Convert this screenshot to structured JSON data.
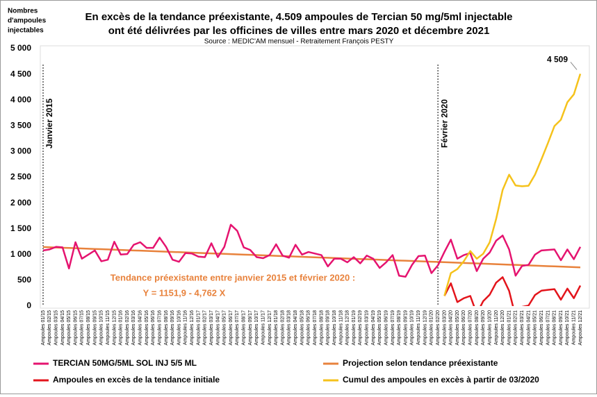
{
  "chart_data": {
    "type": "line",
    "title": "En excès de la tendance préexistante, 4.509 ampoules de Tercian 50 mg/5ml injectable",
    "title_line2": "ont été délivrées par les officines de villes entre mars 2020 et décembre 2021",
    "subtitle": "Source : MEDIC'AM mensuel - Retraitement François PESTY",
    "y_label": [
      "Nombres",
      "d'ampoules",
      "injectables"
    ],
    "markers": [
      "Janvier 2015",
      "Février 2020"
    ],
    "trend_text": [
      "Tendance préexistante entre janvier 2015 et février 2020 :",
      "Y = 1151,9 - 4,762 X"
    ],
    "end_label": "4 509",
    "categories": [
      "Ampoules 01/15",
      "Ampoules 02/15",
      "Ampoules 03/15",
      "Ampoules 04/15",
      "Ampoules 05/15",
      "Ampoules 06/15",
      "Ampoules 07/15",
      "Ampoules 08/15",
      "Ampoules 09/15",
      "Ampoules 10/15",
      "Ampoules 11/15",
      "Ampoules 12/15",
      "Ampoules 01/16",
      "Ampoules 02/16",
      "Ampoules 03/16",
      "Ampoules 04/16",
      "Ampoules 05/16",
      "Ampoules 06/16",
      "Ampoules 07/16",
      "Ampoules 08/16",
      "Ampoules 09/16",
      "Ampoules 10/16",
      "Ampoules 11/16",
      "Ampoules 12/16",
      "Ampoules 01/17",
      "Ampoules 02/17",
      "Ampoules 03/17",
      "Ampoules 04/17",
      "Ampoules 05/17",
      "Ampoules 06/17",
      "Ampoules 07/17",
      "Ampoules 08/17",
      "Ampoules 09/17",
      "Ampoules 10/17",
      "Ampoules 11/17",
      "Ampoules 12/17",
      "Ampoules 01/18",
      "Ampoules 02/18",
      "Ampoules 03/18",
      "Ampoules 04/18",
      "Ampoules 05/18",
      "Ampoules 06/18",
      "Ampoules 07/18",
      "Ampoules 08/18",
      "Ampoules 09/18",
      "Ampoules 10/18",
      "Ampoules 11/18",
      "Ampoules 12/18",
      "Ampoules 01/19",
      "Ampoules 02/19",
      "Ampoules 03/19",
      "Ampoules 04/19",
      "Ampoules 05/19",
      "Ampoules 06/19",
      "Ampoules 07/19",
      "Ampoules 08/19",
      "Ampoules 09/19",
      "Ampoules 10/19",
      "Ampoules 11/19",
      "Ampoules 12/19",
      "Ampoules 01/20",
      "Ampoules 02/20",
      "Ampoules 03/20",
      "Ampoules 04/20",
      "Ampoules 05/20",
      "Ampoules 06/20",
      "Ampoules 07/20",
      "Ampoules 08/20",
      "Ampoules 09/20",
      "Ampoules 10/20",
      "Ampoules 11/20",
      "Ampoules 12/20",
      "Ampoules 01/21",
      "Ampoules 02/21",
      "Ampoules 03/21",
      "Ampoules 04/21",
      "Ampoules 05/21",
      "Ampoules 06/21",
      "Ampoules 07/21",
      "Ampoules 08/21",
      "Ampoules 09/21",
      "Ampoules 10/21",
      "Ampoules 11/21",
      "Ampoules 12/21"
    ],
    "ylim": [
      0,
      5000
    ],
    "yticks": [
      0,
      {
        "value": 500,
        "label": "500"
      },
      {
        "value": 1000,
        "label": "1 000"
      },
      {
        "value": 1500,
        "label": "1 500"
      },
      {
        "value": 2000,
        "label": "2 000"
      },
      {
        "value": 2500,
        "label": "2 500"
      },
      {
        "value": 3000,
        "label": "3 000"
      },
      {
        "value": 3500,
        "label": "3 500"
      },
      {
        "value": 4000,
        "label": "4 000"
      },
      {
        "value": 4500,
        "label": "4 500"
      },
      {
        "value": 5000,
        "label": "5 000"
      }
    ],
    "series": [
      {
        "name": "TERCIAN 50MG/5ML SOL INJ 5/5 ML",
        "color": "#e5136f",
        "values": [
          1080,
          1100,
          1150,
          1140,
          730,
          1240,
          920,
          1000,
          1080,
          870,
          900,
          1250,
          1000,
          1010,
          1190,
          1240,
          1130,
          1130,
          1330,
          1150,
          900,
          860,
          1030,
          1020,
          960,
          950,
          1220,
          950,
          1150,
          1580,
          1460,
          1140,
          1090,
          950,
          930,
          990,
          1200,
          980,
          940,
          1190,
          1000,
          1050,
          1020,
          990,
          770,
          920,
          920,
          850,
          950,
          830,
          980,
          920,
          740,
          850,
          990,
          590,
          570,
          800,
          970,
          980,
          640,
          790,
          1050,
          1290,
          920,
          990,
          1030,
          680,
          920,
          1040,
          1270,
          1370,
          1100,
          590,
          780,
          800,
          1000,
          1080,
          1090,
          1100,
          890,
          1100,
          910,
          1150
        ]
      },
      {
        "name": "Projection selon tendance préexistante",
        "color": "#e8823c",
        "values": [
          1147.1,
          1142.4,
          1137.6,
          1132.9,
          1128.1,
          1123.3,
          1118.6,
          1113.8,
          1109.0,
          1104.3,
          1099.5,
          1094.8,
          1090.0,
          1085.2,
          1080.5,
          1075.7,
          1070.9,
          1066.2,
          1061.4,
          1056.7,
          1051.9,
          1047.1,
          1042.4,
          1037.6,
          1032.9,
          1028.1,
          1023.3,
          1018.6,
          1013.8,
          1009.0,
          1004.3,
          999.5,
          994.8,
          990.0,
          985.2,
          980.5,
          975.7,
          970.9,
          966.2,
          961.4,
          956.7,
          951.9,
          947.1,
          942.4,
          937.6,
          932.9,
          928.1,
          923.3,
          918.6,
          913.8,
          909.0,
          904.3,
          899.5,
          894.8,
          890.0,
          885.2,
          880.5,
          875.7,
          870.9,
          866.2,
          861.4,
          856.7,
          851.9,
          847.1,
          842.4,
          837.6,
          832.8,
          828.1,
          823.3,
          818.5,
          813.8,
          809.0,
          804.2,
          799.5,
          794.7,
          789.9,
          785.2,
          780.4,
          775.6,
          770.9,
          766.1,
          761.3,
          756.6,
          751.8
        ]
      },
      {
        "name": "Ampoules en excès de la tendance initiale",
        "color": "#e3141b",
        "values": [
          null,
          null,
          null,
          null,
          null,
          null,
          null,
          null,
          null,
          null,
          null,
          null,
          null,
          null,
          null,
          null,
          null,
          null,
          null,
          null,
          null,
          null,
          null,
          null,
          null,
          null,
          null,
          null,
          null,
          null,
          null,
          null,
          null,
          null,
          null,
          null,
          null,
          null,
          null,
          null,
          null,
          null,
          null,
          null,
          null,
          null,
          null,
          null,
          null,
          null,
          null,
          null,
          null,
          null,
          null,
          null,
          null,
          null,
          null,
          null,
          null,
          null,
          198.1,
          442.9,
          77.6,
          152.4,
          197.2,
          -148.1,
          96.7,
          221.5,
          456.2,
          561.0,
          295.8,
          -209.5,
          -14.7,
          10.1,
          214.8,
          299.6,
          314.4,
          329.1,
          123.9,
          338.7,
          153.4,
          398.2
        ]
      },
      {
        "name": "Cumul des ampoules en excès à partir de 03/2020",
        "color": "#f5c21b",
        "values": [
          null,
          null,
          null,
          null,
          null,
          null,
          null,
          null,
          null,
          null,
          null,
          null,
          null,
          null,
          null,
          null,
          null,
          null,
          null,
          null,
          null,
          null,
          null,
          null,
          null,
          null,
          null,
          null,
          null,
          null,
          null,
          null,
          null,
          null,
          null,
          null,
          null,
          null,
          null,
          null,
          null,
          null,
          null,
          null,
          null,
          null,
          null,
          null,
          null,
          null,
          null,
          null,
          null,
          null,
          null,
          null,
          null,
          null,
          null,
          null,
          null,
          null,
          198.1,
          641.0,
          718.6,
          871.0,
          1068.2,
          920.1,
          1016.8,
          1238.3,
          1694.5,
          2255.5,
          2551.3,
          2341.8,
          2327.1,
          2337.2,
          2552.0,
          2851.6,
          3166.0,
          3495.1,
          3619.0,
          3957.7,
          4111.1,
          4509.3
        ]
      }
    ],
    "legend": "bottom"
  }
}
